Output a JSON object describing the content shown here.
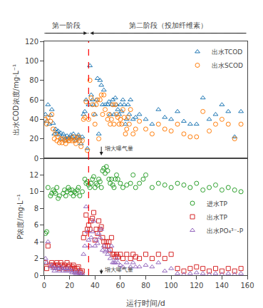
{
  "chart_data": [
    {
      "type": "scatter",
      "ylabel": "出水COD浓度/mg·L⁻¹",
      "xlim": [
        0,
        160
      ],
      "ylim": [
        0,
        120
      ],
      "yticks": [
        0,
        20,
        40,
        60,
        80,
        100,
        120
      ],
      "tick_labels": "y",
      "grid": false,
      "legend": "upper right",
      "series": [
        {
          "name": "出水TCOD",
          "marker": "triangle",
          "x": [
            1,
            2,
            3,
            4,
            5,
            6,
            7,
            8,
            9,
            10,
            11,
            12,
            13,
            14,
            15,
            16,
            17,
            18,
            19,
            20,
            21,
            22,
            23,
            24,
            25,
            26,
            27,
            28,
            29,
            30,
            31,
            32,
            33,
            34,
            35,
            36,
            37,
            38,
            39,
            40,
            41,
            42,
            43,
            44,
            45,
            46,
            47,
            48,
            50,
            51,
            52,
            53,
            54,
            55,
            56,
            57,
            58,
            59,
            60,
            61,
            62,
            63,
            64,
            65,
            66,
            67,
            68,
            70,
            72,
            75,
            80,
            85,
            90,
            95,
            100,
            105,
            110,
            115,
            120,
            125,
            130,
            135,
            140,
            145,
            150,
            155
          ],
          "values": [
            45,
            38,
            55,
            35,
            44,
            50,
            36,
            25,
            30,
            27,
            28,
            24,
            26,
            20,
            25,
            22,
            18,
            23,
            20,
            21,
            24,
            22,
            25,
            20,
            18,
            22,
            24,
            20,
            15,
            22,
            45,
            48,
            60,
            10,
            55,
            95,
            65,
            60,
            55,
            45,
            60,
            82,
            25,
            80,
            75,
            55,
            70,
            55,
            55,
            58,
            45,
            55,
            60,
            45,
            62,
            55,
            50,
            45,
            55,
            48,
            60,
            55,
            35,
            40,
            55,
            45,
            60,
            40,
            42,
            45,
            40,
            35,
            50,
            42,
            40,
            48,
            38,
            35,
            35,
            62,
            40,
            45,
            55,
            48,
            22,
            48
          ]
        },
        {
          "name": "出水SCOD",
          "marker": "circle",
          "x": [
            1,
            2,
            3,
            5,
            6,
            7,
            8,
            9,
            10,
            11,
            12,
            13,
            14,
            15,
            16,
            17,
            18,
            19,
            20,
            21,
            22,
            23,
            24,
            25,
            26,
            27,
            28,
            29,
            30,
            31,
            32,
            33,
            34,
            35,
            36,
            37,
            38,
            39,
            40,
            41,
            42,
            43,
            44,
            45,
            46,
            47,
            48,
            50,
            51,
            52,
            53,
            54,
            55,
            56,
            57,
            58,
            59,
            60,
            61,
            62,
            63,
            64,
            65,
            66,
            67,
            68,
            70,
            72,
            75,
            80,
            85,
            90,
            95,
            100,
            105,
            110,
            115,
            120,
            125,
            130,
            135,
            140,
            145,
            150,
            155
          ],
          "values": [
            40,
            35,
            42,
            38,
            45,
            30,
            20,
            25,
            18,
            22,
            16,
            20,
            16,
            20,
            18,
            15,
            20,
            18,
            18,
            20,
            18,
            22,
            18,
            15,
            20,
            22,
            18,
            12,
            18,
            40,
            42,
            58,
            8,
            40,
            80,
            62,
            55,
            45,
            35,
            55,
            60,
            20,
            60,
            65,
            45,
            65,
            50,
            40,
            45,
            35,
            40,
            55,
            35,
            55,
            45,
            42,
            35,
            40,
            35,
            50,
            42,
            25,
            30,
            42,
            35,
            50,
            25,
            30,
            38,
            30,
            25,
            35,
            30,
            28,
            35,
            25,
            22,
            22,
            48,
            28,
            35,
            40,
            35,
            20,
            35
          ]
        }
      ],
      "phase_line": {
        "x": 35,
        "color": "red",
        "line_style": "dashed"
      },
      "phases": [
        {
          "label": "第一阶段",
          "from": 0,
          "to": 35
        },
        {
          "label": "第二阶段（投加纤维素）",
          "from": 35,
          "to": 160
        }
      ],
      "annotations": [
        {
          "text": "增大曝气量",
          "x": 46,
          "y": 10,
          "arrow": {
            "x": 45,
            "y_start": 13,
            "y_end": 3
          }
        }
      ]
    },
    {
      "type": "scatter",
      "xlabel": "运行时间/d",
      "ylabel": "P浓度/mg·L⁻¹",
      "xlim": [
        0,
        160
      ],
      "xticks": [
        0,
        20,
        40,
        60,
        80,
        100,
        120,
        140,
        160
      ],
      "ylim": [
        0,
        14
      ],
      "yticks": [
        0,
        2,
        4,
        6,
        8,
        10,
        12
      ],
      "grid": false,
      "legend": "center right",
      "series": [
        {
          "name": "进水TP",
          "marker": "circle",
          "x": [
            1,
            2,
            3,
            5,
            6,
            7,
            8,
            9,
            10,
            11,
            12,
            15,
            16,
            17,
            18,
            19,
            20,
            21,
            22,
            23,
            24,
            25,
            26,
            27,
            28,
            30,
            32,
            33,
            34,
            35,
            36,
            37,
            38,
            39,
            40,
            41,
            42,
            43,
            44,
            45,
            46,
            47,
            48,
            49,
            50,
            51,
            52,
            53,
            54,
            55,
            56,
            57,
            58,
            60,
            62,
            65,
            68,
            70,
            72,
            75,
            78,
            80,
            85,
            90,
            95,
            100,
            105,
            110,
            115,
            120,
            125,
            130,
            135,
            140,
            145,
            150,
            155
          ],
          "values": [
            5,
            5.2,
            10.5,
            9.5,
            9.8,
            10.2,
            10.0,
            9.8,
            10.5,
            9.2,
            9.5,
            9.8,
            10.2,
            9.5,
            10.0,
            10.5,
            10.2,
            9.8,
            10.2,
            9.5,
            10.0,
            9.8,
            10.2,
            10.5,
            9.5,
            10.0,
            11.5,
            11.0,
            11.2,
            10.8,
            10.5,
            11.0,
            11.5,
            11.8,
            10.5,
            11.0,
            10.8,
            11.5,
            11.2,
            10.5,
            12.5,
            12.8,
            12.2,
            13.0,
            12.5,
            11.5,
            11.0,
            11.5,
            10.8,
            10.5,
            11.5,
            12.0,
            11.5,
            11.0,
            10.5,
            10.8,
            11.0,
            12.0,
            10.5,
            11.0,
            11.5,
            12.0,
            10.5,
            11.0,
            10.8,
            10.5,
            11.0,
            10.8,
            10.5,
            11.0,
            10.2,
            10.5,
            10.8,
            10.2,
            10.5,
            10.2,
            10.0
          ]
        },
        {
          "name": "出水TP",
          "marker": "square",
          "x": [
            1,
            2,
            3,
            5,
            6,
            7,
            8,
            9,
            10,
            11,
            12,
            13,
            14,
            15,
            16,
            17,
            18,
            19,
            20,
            21,
            22,
            23,
            24,
            25,
            26,
            27,
            28,
            29,
            30,
            31,
            32,
            33,
            34,
            35,
            36,
            37,
            38,
            39,
            40,
            41,
            42,
            43,
            44,
            45,
            46,
            47,
            48,
            49,
            50,
            51,
            52,
            53,
            54,
            55,
            56,
            57,
            58,
            60,
            62,
            65,
            68,
            70,
            72,
            75,
            80,
            85,
            90,
            95,
            100,
            105,
            110,
            115,
            120,
            125,
            130,
            135,
            140,
            145,
            150,
            155
          ],
          "values": [
            1.5,
            0.8,
            3.5,
            1.2,
            1.5,
            1.2,
            1.0,
            1.2,
            1.5,
            1.2,
            0.8,
            1.5,
            1.2,
            1.0,
            1.2,
            0.8,
            1.5,
            1.0,
            1.2,
            0.8,
            1.0,
            1.2,
            0.8,
            0.5,
            0.8,
            1.0,
            0.5,
            0.3,
            0.5,
            4.5,
            5.0,
            7.2,
            5.5,
            6.0,
            5.5,
            6.5,
            6.8,
            7.5,
            4.2,
            5.5,
            5.0,
            6.5,
            5.5,
            5.8,
            4.5,
            4.0,
            3.5,
            4.0,
            3.5,
            4.0,
            3.0,
            4.5,
            2.5,
            2.5,
            2.2,
            2.5,
            2.2,
            2.5,
            2.0,
            2.5,
            2.0,
            2.5,
            2.2,
            2.0,
            2.5,
            2.0,
            2.5,
            2.0,
            2.5,
            0.8,
            0.5,
            0.8,
            1.0,
            0.8,
            0.5,
            0.8,
            0.5,
            0.8,
            0.5,
            0.8
          ]
        },
        {
          "name": "出水PO₄³⁻-P",
          "marker": "triangle",
          "x": [
            1,
            2,
            3,
            5,
            6,
            7,
            8,
            9,
            10,
            11,
            12,
            13,
            14,
            15,
            16,
            17,
            18,
            19,
            20,
            21,
            22,
            23,
            24,
            25,
            26,
            27,
            28,
            29,
            30,
            31,
            32,
            33,
            34,
            35,
            36,
            37,
            38,
            39,
            40,
            41,
            42,
            43,
            44,
            45,
            46,
            47,
            48,
            49,
            50,
            51,
            52,
            53,
            54,
            55,
            56,
            57,
            58,
            60,
            62,
            65,
            68,
            70,
            72,
            75,
            80,
            85,
            90,
            95,
            100,
            105,
            110,
            115,
            120,
            125,
            130,
            135,
            140,
            145,
            150,
            155
          ],
          "values": [
            2.0,
            1.5,
            4.0,
            1.0,
            1.2,
            0.8,
            0.5,
            0.8,
            1.0,
            0.8,
            0.5,
            1.0,
            0.8,
            0.5,
            0.8,
            0.5,
            0.8,
            0.5,
            0.8,
            0.5,
            0.3,
            0.5,
            0.3,
            0.2,
            0.3,
            0.5,
            0.2,
            0.1,
            0.2,
            2.5,
            3.5,
            8.2,
            5.2,
            4.2,
            3.5,
            4.5,
            5.2,
            6.5,
            3.5,
            4.2,
            3.8,
            5.0,
            4.5,
            5.5,
            3.0,
            3.5,
            2.8,
            3.0,
            2.5,
            3.0,
            2.0,
            3.5,
            1.5,
            1.5,
            1.5,
            2.0,
            1.5,
            1.2,
            1.0,
            1.5,
            1.0,
            1.5,
            1.0,
            1.0,
            1.2,
            1.0,
            1.5,
            0.5,
            0.8,
            0.2,
            0.1,
            0.2,
            0.3,
            0.2,
            0.1,
            0.2,
            0.1,
            0.2,
            0.1,
            0.2
          ]
        }
      ],
      "phase_line": {
        "x": 35,
        "color": "red",
        "line_style": "dashed"
      },
      "annotations": [
        {
          "text": "增大曝气量",
          "x": 46,
          "y": 0.6,
          "arrow": {
            "x": 45,
            "y_start": 0.85,
            "y_end": 0.12
          }
        }
      ]
    }
  ]
}
